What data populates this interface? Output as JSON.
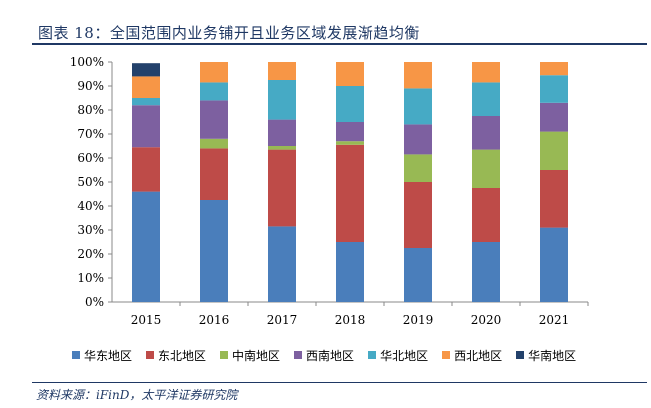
{
  "header": {
    "title": "图表 18：全国范围内业务铺开且业务区域发展渐趋均衡"
  },
  "footer": {
    "source": "资料来源：iFinD，太平洋证券研究院"
  },
  "colors": {
    "title": "#1f3864",
    "series": [
      "#4a7ebb",
      "#be4b48",
      "#98b954",
      "#7d60a0",
      "#46aac5",
      "#f79646",
      "#23416b"
    ]
  },
  "chart_data": {
    "type": "bar",
    "stacked": true,
    "title": "",
    "xlabel": "",
    "ylabel": "",
    "ylim": [
      0,
      100
    ],
    "yticks": [
      "0%",
      "10%",
      "20%",
      "30%",
      "40%",
      "50%",
      "60%",
      "70%",
      "80%",
      "90%",
      "100%"
    ],
    "categories": [
      "2015",
      "2016",
      "2017",
      "2018",
      "2019",
      "2020",
      "2021"
    ],
    "legend_position": "bottom",
    "grid": false,
    "series": [
      {
        "name": "华东地区",
        "values": [
          46,
          42.5,
          31.5,
          25,
          22.5,
          25,
          31
        ]
      },
      {
        "name": "东北地区",
        "values": [
          18.5,
          21.5,
          32,
          40.5,
          27.5,
          22.5,
          24
        ]
      },
      {
        "name": "中南地区",
        "values": [
          0,
          4,
          1.5,
          1.5,
          11.5,
          16,
          16
        ]
      },
      {
        "name": "西南地区",
        "values": [
          17.5,
          16,
          11,
          8,
          12.5,
          14,
          12
        ]
      },
      {
        "name": "华北地区",
        "values": [
          3,
          7.5,
          16.5,
          15,
          15,
          14,
          11.5
        ]
      },
      {
        "name": "西北地区",
        "values": [
          9,
          8.5,
          7.5,
          10,
          11,
          8.5,
          5.5
        ]
      },
      {
        "name": "华南地区",
        "values": [
          5.5,
          0,
          0,
          0,
          0,
          0,
          0
        ]
      }
    ]
  }
}
